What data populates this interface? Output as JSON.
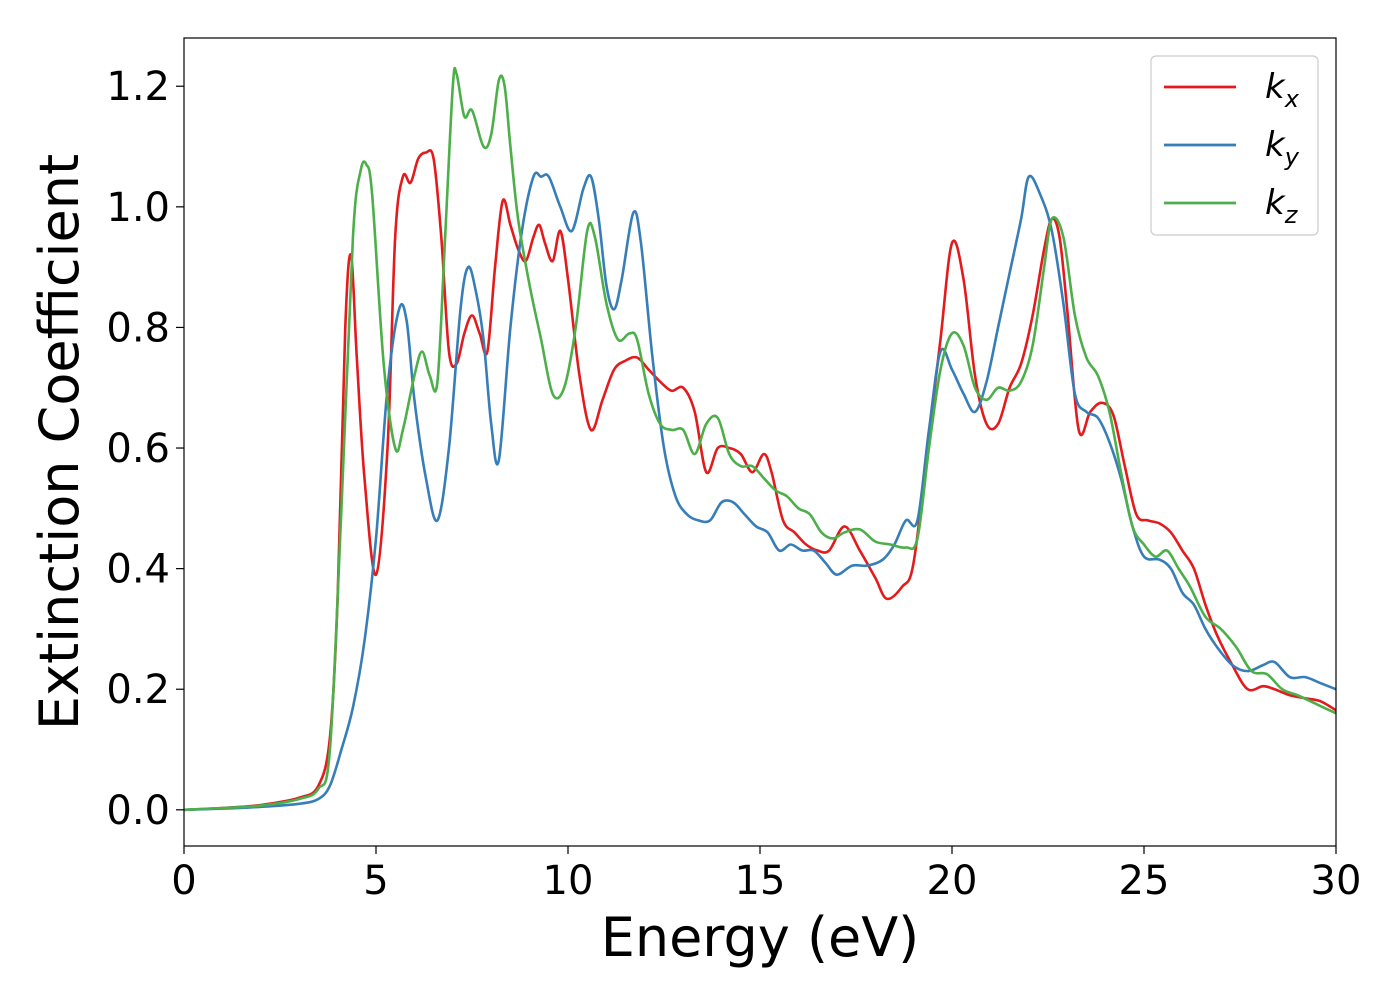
{
  "chart_data": {
    "type": "line",
    "title": "",
    "xlabel": "Energy (eV)",
    "ylabel": "Extinction Coefficient",
    "xlim": [
      0,
      30
    ],
    "ylim": [
      -0.06,
      1.28
    ],
    "xticks": [
      0,
      5,
      10,
      15,
      20,
      25,
      30
    ],
    "xtick_labels": [
      "0",
      "5",
      "10",
      "15",
      "20",
      "25",
      "30"
    ],
    "yticks": [
      0.0,
      0.2,
      0.4,
      0.6,
      0.8,
      1.0,
      1.2
    ],
    "ytick_labels": [
      "0.0",
      "0.2",
      "0.4",
      "0.6",
      "0.8",
      "1.0",
      "1.2"
    ],
    "grid": false,
    "legend_position": "top-right",
    "series": [
      {
        "name": "k_x",
        "legend_base": "k",
        "legend_sub": "x",
        "color": "#e41a1c",
        "points": [
          [
            0,
            0
          ],
          [
            1,
            0.003
          ],
          [
            2,
            0.008
          ],
          [
            3,
            0.02
          ],
          [
            3.5,
            0.04
          ],
          [
            3.8,
            0.12
          ],
          [
            4,
            0.35
          ],
          [
            4.2,
            0.8
          ],
          [
            4.35,
            0.92
          ],
          [
            4.5,
            0.75
          ],
          [
            4.7,
            0.55
          ],
          [
            5.0,
            0.39
          ],
          [
            5.3,
            0.6
          ],
          [
            5.5,
            0.95
          ],
          [
            5.7,
            1.05
          ],
          [
            5.9,
            1.04
          ],
          [
            6.1,
            1.08
          ],
          [
            6.3,
            1.09
          ],
          [
            6.5,
            1.08
          ],
          [
            6.7,
            0.95
          ],
          [
            6.9,
            0.76
          ],
          [
            7.1,
            0.74
          ],
          [
            7.3,
            0.79
          ],
          [
            7.5,
            0.82
          ],
          [
            7.7,
            0.79
          ],
          [
            7.9,
            0.76
          ],
          [
            8.1,
            0.9
          ],
          [
            8.3,
            1.01
          ],
          [
            8.5,
            0.97
          ],
          [
            8.7,
            0.93
          ],
          [
            8.9,
            0.91
          ],
          [
            9.1,
            0.95
          ],
          [
            9.25,
            0.97
          ],
          [
            9.4,
            0.94
          ],
          [
            9.6,
            0.91
          ],
          [
            9.8,
            0.96
          ],
          [
            10.0,
            0.88
          ],
          [
            10.3,
            0.72
          ],
          [
            10.6,
            0.63
          ],
          [
            10.9,
            0.68
          ],
          [
            11.2,
            0.73
          ],
          [
            11.5,
            0.745
          ],
          [
            11.8,
            0.75
          ],
          [
            12.1,
            0.73
          ],
          [
            12.4,
            0.71
          ],
          [
            12.7,
            0.695
          ],
          [
            13.0,
            0.7
          ],
          [
            13.3,
            0.66
          ],
          [
            13.6,
            0.56
          ],
          [
            13.9,
            0.6
          ],
          [
            14.2,
            0.6
          ],
          [
            14.5,
            0.59
          ],
          [
            14.8,
            0.56
          ],
          [
            15.1,
            0.59
          ],
          [
            15.3,
            0.56
          ],
          [
            15.6,
            0.48
          ],
          [
            15.9,
            0.46
          ],
          [
            16.2,
            0.44
          ],
          [
            16.5,
            0.43
          ],
          [
            16.8,
            0.43
          ],
          [
            17.2,
            0.47
          ],
          [
            17.6,
            0.43
          ],
          [
            18.0,
            0.385
          ],
          [
            18.3,
            0.35
          ],
          [
            18.7,
            0.37
          ],
          [
            19.0,
            0.41
          ],
          [
            19.4,
            0.62
          ],
          [
            19.7,
            0.78
          ],
          [
            20.0,
            0.94
          ],
          [
            20.3,
            0.88
          ],
          [
            20.6,
            0.72
          ],
          [
            20.9,
            0.64
          ],
          [
            21.2,
            0.64
          ],
          [
            21.5,
            0.7
          ],
          [
            21.8,
            0.74
          ],
          [
            22.1,
            0.82
          ],
          [
            22.4,
            0.93
          ],
          [
            22.6,
            0.98
          ],
          [
            22.8,
            0.95
          ],
          [
            23.0,
            0.83
          ],
          [
            23.3,
            0.63
          ],
          [
            23.6,
            0.66
          ],
          [
            23.9,
            0.675
          ],
          [
            24.2,
            0.655
          ],
          [
            24.5,
            0.57
          ],
          [
            24.8,
            0.49
          ],
          [
            25.1,
            0.48
          ],
          [
            25.4,
            0.475
          ],
          [
            25.7,
            0.46
          ],
          [
            26.0,
            0.43
          ],
          [
            26.3,
            0.4
          ],
          [
            26.6,
            0.34
          ],
          [
            26.9,
            0.29
          ],
          [
            27.3,
            0.24
          ],
          [
            27.7,
            0.2
          ],
          [
            28.1,
            0.205
          ],
          [
            28.4,
            0.2
          ],
          [
            28.8,
            0.19
          ],
          [
            29.2,
            0.185
          ],
          [
            29.6,
            0.18
          ],
          [
            30,
            0.165
          ]
        ]
      },
      {
        "name": "k_y",
        "legend_base": "k",
        "legend_sub": "y",
        "color": "#377eb8",
        "points": [
          [
            0,
            0
          ],
          [
            1,
            0.002
          ],
          [
            2,
            0.005
          ],
          [
            3,
            0.01
          ],
          [
            3.5,
            0.018
          ],
          [
            3.8,
            0.04
          ],
          [
            4.1,
            0.1
          ],
          [
            4.4,
            0.17
          ],
          [
            4.7,
            0.28
          ],
          [
            5.0,
            0.45
          ],
          [
            5.3,
            0.7
          ],
          [
            5.6,
            0.83
          ],
          [
            5.8,
            0.81
          ],
          [
            6.0,
            0.68
          ],
          [
            6.3,
            0.55
          ],
          [
            6.6,
            0.48
          ],
          [
            6.9,
            0.6
          ],
          [
            7.2,
            0.83
          ],
          [
            7.4,
            0.9
          ],
          [
            7.6,
            0.86
          ],
          [
            7.8,
            0.78
          ],
          [
            8.0,
            0.64
          ],
          [
            8.2,
            0.58
          ],
          [
            8.5,
            0.8
          ],
          [
            8.8,
            0.96
          ],
          [
            9.1,
            1.05
          ],
          [
            9.3,
            1.05
          ],
          [
            9.5,
            1.05
          ],
          [
            9.8,
            1.0
          ],
          [
            10.1,
            0.96
          ],
          [
            10.4,
            1.03
          ],
          [
            10.6,
            1.05
          ],
          [
            10.8,
            0.98
          ],
          [
            11.0,
            0.87
          ],
          [
            11.2,
            0.83
          ],
          [
            11.4,
            0.88
          ],
          [
            11.7,
            0.99
          ],
          [
            11.9,
            0.94
          ],
          [
            12.2,
            0.75
          ],
          [
            12.5,
            0.6
          ],
          [
            12.8,
            0.52
          ],
          [
            13.1,
            0.49
          ],
          [
            13.4,
            0.48
          ],
          [
            13.7,
            0.48
          ],
          [
            14.0,
            0.51
          ],
          [
            14.3,
            0.51
          ],
          [
            14.6,
            0.49
          ],
          [
            14.9,
            0.47
          ],
          [
            15.2,
            0.46
          ],
          [
            15.5,
            0.43
          ],
          [
            15.8,
            0.44
          ],
          [
            16.1,
            0.43
          ],
          [
            16.4,
            0.43
          ],
          [
            16.7,
            0.41
          ],
          [
            17.0,
            0.39
          ],
          [
            17.4,
            0.405
          ],
          [
            17.8,
            0.405
          ],
          [
            18.2,
            0.415
          ],
          [
            18.5,
            0.44
          ],
          [
            18.8,
            0.48
          ],
          [
            19.1,
            0.48
          ],
          [
            19.4,
            0.63
          ],
          [
            19.7,
            0.76
          ],
          [
            20.0,
            0.73
          ],
          [
            20.3,
            0.69
          ],
          [
            20.6,
            0.66
          ],
          [
            20.9,
            0.71
          ],
          [
            21.2,
            0.8
          ],
          [
            21.5,
            0.89
          ],
          [
            21.8,
            0.98
          ],
          [
            22.0,
            1.05
          ],
          [
            22.3,
            1.02
          ],
          [
            22.6,
            0.96
          ],
          [
            22.9,
            0.84
          ],
          [
            23.2,
            0.69
          ],
          [
            23.5,
            0.66
          ],
          [
            23.8,
            0.65
          ],
          [
            24.1,
            0.61
          ],
          [
            24.4,
            0.55
          ],
          [
            24.7,
            0.47
          ],
          [
            25.0,
            0.42
          ],
          [
            25.4,
            0.415
          ],
          [
            25.7,
            0.4
          ],
          [
            26.0,
            0.36
          ],
          [
            26.3,
            0.34
          ],
          [
            26.6,
            0.3
          ],
          [
            26.9,
            0.27
          ],
          [
            27.3,
            0.24
          ],
          [
            27.7,
            0.23
          ],
          [
            28.1,
            0.24
          ],
          [
            28.4,
            0.245
          ],
          [
            28.8,
            0.22
          ],
          [
            29.2,
            0.22
          ],
          [
            29.6,
            0.21
          ],
          [
            30,
            0.2
          ]
        ]
      },
      {
        "name": "k_z",
        "legend_base": "k",
        "legend_sub": "z",
        "color": "#4daf4a",
        "points": [
          [
            0,
            0
          ],
          [
            1,
            0.003
          ],
          [
            2,
            0.007
          ],
          [
            3,
            0.018
          ],
          [
            3.5,
            0.035
          ],
          [
            3.8,
            0.1
          ],
          [
            4.1,
            0.5
          ],
          [
            4.4,
            0.95
          ],
          [
            4.6,
            1.06
          ],
          [
            4.75,
            1.07
          ],
          [
            4.9,
            1.02
          ],
          [
            5.2,
            0.74
          ],
          [
            5.5,
            0.6
          ],
          [
            5.7,
            0.63
          ],
          [
            6.0,
            0.72
          ],
          [
            6.2,
            0.76
          ],
          [
            6.4,
            0.72
          ],
          [
            6.6,
            0.71
          ],
          [
            6.8,
            0.95
          ],
          [
            7.0,
            1.2
          ],
          [
            7.1,
            1.22
          ],
          [
            7.3,
            1.15
          ],
          [
            7.5,
            1.16
          ],
          [
            7.8,
            1.1
          ],
          [
            8.0,
            1.12
          ],
          [
            8.2,
            1.21
          ],
          [
            8.35,
            1.2
          ],
          [
            8.5,
            1.1
          ],
          [
            8.7,
            0.98
          ],
          [
            9.0,
            0.87
          ],
          [
            9.3,
            0.78
          ],
          [
            9.6,
            0.69
          ],
          [
            9.9,
            0.7
          ],
          [
            10.2,
            0.8
          ],
          [
            10.5,
            0.96
          ],
          [
            10.7,
            0.95
          ],
          [
            11.0,
            0.84
          ],
          [
            11.3,
            0.78
          ],
          [
            11.6,
            0.79
          ],
          [
            11.8,
            0.78
          ],
          [
            12.1,
            0.69
          ],
          [
            12.4,
            0.64
          ],
          [
            12.7,
            0.63
          ],
          [
            13.0,
            0.63
          ],
          [
            13.3,
            0.59
          ],
          [
            13.6,
            0.64
          ],
          [
            13.9,
            0.65
          ],
          [
            14.2,
            0.59
          ],
          [
            14.5,
            0.57
          ],
          [
            14.8,
            0.57
          ],
          [
            15.1,
            0.55
          ],
          [
            15.4,
            0.53
          ],
          [
            15.7,
            0.52
          ],
          [
            16.0,
            0.5
          ],
          [
            16.3,
            0.49
          ],
          [
            16.6,
            0.46
          ],
          [
            16.9,
            0.45
          ],
          [
            17.2,
            0.46
          ],
          [
            17.6,
            0.465
          ],
          [
            18.0,
            0.445
          ],
          [
            18.4,
            0.44
          ],
          [
            18.8,
            0.435
          ],
          [
            19.1,
            0.45
          ],
          [
            19.4,
            0.6
          ],
          [
            19.7,
            0.73
          ],
          [
            20.0,
            0.79
          ],
          [
            20.3,
            0.77
          ],
          [
            20.6,
            0.7
          ],
          [
            20.9,
            0.68
          ],
          [
            21.2,
            0.7
          ],
          [
            21.5,
            0.695
          ],
          [
            21.8,
            0.71
          ],
          [
            22.1,
            0.77
          ],
          [
            22.4,
            0.9
          ],
          [
            22.6,
            0.98
          ],
          [
            22.9,
            0.95
          ],
          [
            23.2,
            0.82
          ],
          [
            23.5,
            0.75
          ],
          [
            23.8,
            0.72
          ],
          [
            24.1,
            0.66
          ],
          [
            24.4,
            0.56
          ],
          [
            24.7,
            0.47
          ],
          [
            25.0,
            0.44
          ],
          [
            25.3,
            0.42
          ],
          [
            25.6,
            0.43
          ],
          [
            25.9,
            0.4
          ],
          [
            26.2,
            0.37
          ],
          [
            26.6,
            0.32
          ],
          [
            27.0,
            0.3
          ],
          [
            27.4,
            0.27
          ],
          [
            27.8,
            0.23
          ],
          [
            28.2,
            0.225
          ],
          [
            28.6,
            0.2
          ],
          [
            29.0,
            0.19
          ],
          [
            29.5,
            0.175
          ],
          [
            30,
            0.16
          ]
        ]
      }
    ]
  }
}
